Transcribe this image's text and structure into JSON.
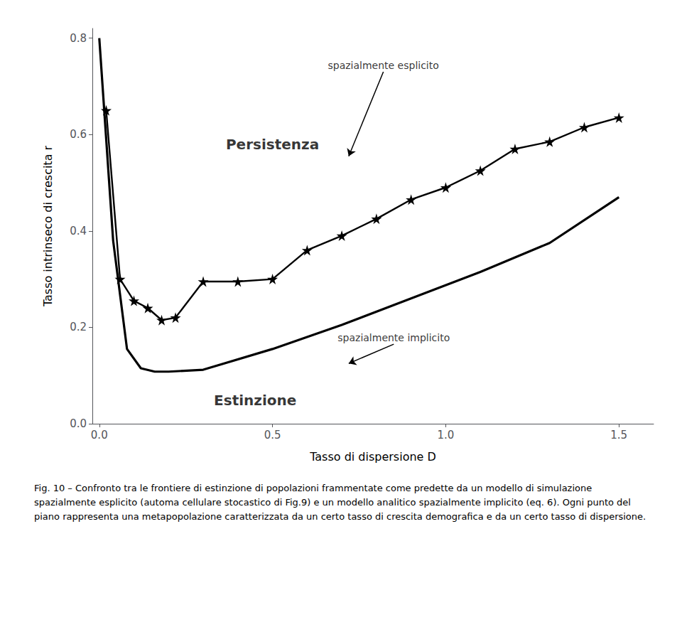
{
  "chart_data": {
    "type": "line",
    "xlabel": "Tasso di dispersione D",
    "ylabel": "Tasso intrinseco di crescita r",
    "xlim": [
      -0.02,
      1.6
    ],
    "ylim": [
      0.0,
      0.82
    ],
    "xticks": [
      {
        "value": 0,
        "label": "0.0"
      },
      0.5,
      {
        "value": 1,
        "label": "1.0"
      },
      1.5
    ],
    "yticks": [
      {
        "value": 0,
        "label": "0.0"
      },
      0.2,
      0.4,
      0.6,
      0.8
    ],
    "grid": false,
    "legend": false,
    "series": [
      {
        "x": [
          0.0,
          0.04,
          0.08,
          0.12,
          0.16,
          0.2,
          0.3,
          0.5,
          0.7,
          0.9,
          1.1,
          1.3,
          1.5
        ],
        "values": [
          0.8,
          0.38,
          0.155,
          0.115,
          0.108,
          0.108,
          0.112,
          0.155,
          0.205,
          0.26,
          0.315,
          0.375,
          0.47
        ],
        "color": "#000000",
        "marker": "none"
      },
      {
        "x": [
          0.02,
          0.06,
          0.1,
          0.14,
          0.18,
          0.22,
          0.3,
          0.4,
          0.5,
          0.6,
          0.7,
          0.8,
          0.9,
          1.0,
          1.1,
          1.2,
          1.3,
          1.4,
          1.5
        ],
        "values": [
          0.65,
          0.3,
          0.255,
          0.24,
          0.215,
          0.22,
          0.295,
          0.295,
          0.3,
          0.36,
          0.39,
          0.425,
          0.465,
          0.49,
          0.525,
          0.57,
          0.585,
          0.615,
          0.635
        ],
        "color": "#000000",
        "marker": "star"
      }
    ],
    "annotations": [
      {
        "text": "Persistenza",
        "x": 0.5,
        "y": 0.58
      },
      {
        "text": "Estinzione",
        "x": 0.45,
        "y": 0.048
      },
      {
        "text": "spazialmente esplicito",
        "x": 0.82,
        "y": 0.73,
        "arrow_x": 0.72,
        "arrow_y": 0.555
      },
      {
        "text": "spazialmente implicito",
        "x": 0.85,
        "y": 0.165,
        "arrow_x": 0.72,
        "arrow_y": 0.125
      }
    ],
    "caption": "Fig. 10 – Confronto tra le frontiere di estinzione di popolazioni frammentate come predette da un modello di simulazione spazialmente esplicito (automa cellulare stocastico di Fig.9) e un modello analitico spazialmente implicito (eq. 6). Ogni punto del piano rappresenta una metapopolazione caratterizzata da un certo tasso di crescita demografica e da un certo tasso di dispersione."
  }
}
